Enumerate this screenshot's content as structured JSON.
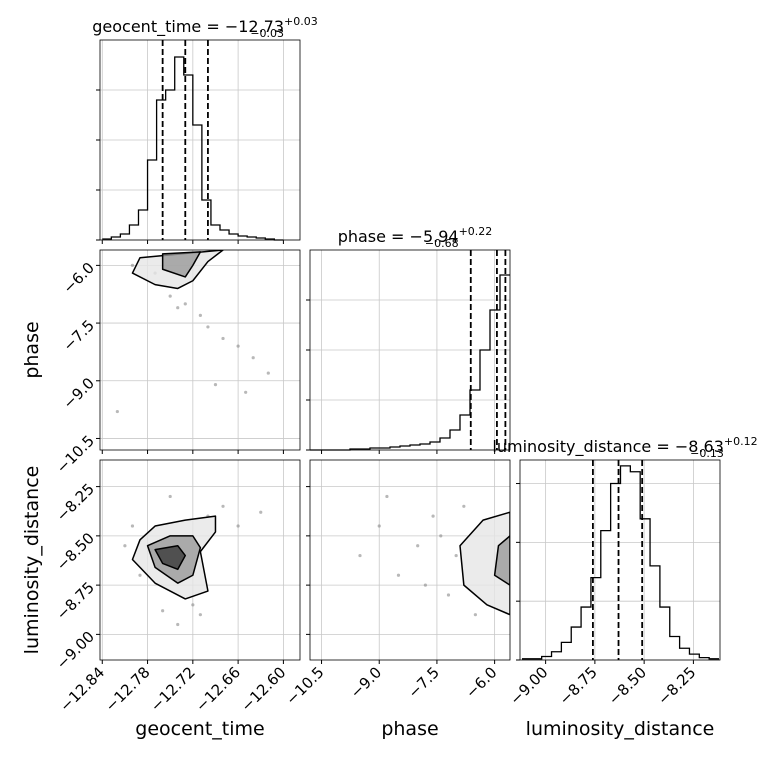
{
  "chart_data": {
    "type": "corner",
    "parameters": [
      {
        "label": "geocent_time",
        "title": "geocent_time = −12.73",
        "title_plus": "+0.03",
        "title_minus": "−0.03",
        "lim": [
          -12.843,
          -12.578
        ],
        "ticks": [
          {
            "value": -12.84,
            "label": "−12.84"
          },
          {
            "value": -12.78,
            "label": "−12.78"
          },
          {
            "value": -12.72,
            "label": "−12.72"
          },
          {
            "value": -12.66,
            "label": "−12.66"
          },
          {
            "value": -12.6,
            "label": "−12.60"
          }
        ],
        "quantiles": [
          -12.76,
          -12.73,
          -12.7
        ],
        "bins": [
          -12.84,
          -12.828,
          -12.816,
          -12.804,
          -12.792,
          -12.78,
          -12.768,
          -12.756,
          -12.744,
          -12.732,
          -12.72,
          -12.708,
          -12.696,
          -12.684,
          -12.672,
          -12.66,
          -12.648,
          -12.636,
          -12.624,
          -12.612,
          -12.6
        ],
        "counts": [
          1,
          3,
          6,
          15,
          30,
          80,
          140,
          150,
          183,
          165,
          115,
          40,
          15,
          10,
          6,
          4,
          3,
          2,
          1,
          0
        ],
        "count_lim": [
          0,
          200
        ],
        "count_ticks": [
          0,
          50,
          100,
          150
        ]
      },
      {
        "label": "phase",
        "title": "phase = −5.94",
        "title_plus": "+0.22",
        "title_minus": "−0.68",
        "lim": [
          -10.8,
          -5.6
        ],
        "ticks": [
          {
            "value": -10.5,
            "label": "−10.5"
          },
          {
            "value": -9.0,
            "label": "−9.0"
          },
          {
            "value": -7.5,
            "label": "−7.5"
          },
          {
            "value": -6.0,
            "label": "−6.0"
          }
        ],
        "quantiles": [
          -6.62,
          -5.94,
          -5.72
        ],
        "bins": [
          -10.8,
          -10.54,
          -10.28,
          -10.02,
          -9.76,
          -9.5,
          -9.24,
          -8.98,
          -8.72,
          -8.46,
          -8.2,
          -7.94,
          -7.68,
          -7.42,
          -7.16,
          -6.9,
          -6.64,
          -6.38,
          -6.12,
          -5.86,
          -5.6
        ],
        "counts": [
          0,
          0,
          0,
          0,
          1,
          1,
          2,
          2,
          3,
          4,
          5,
          6,
          8,
          12,
          20,
          35,
          60,
          100,
          140,
          175
        ],
        "count_lim": [
          0,
          200
        ],
        "count_ticks": [
          0,
          50,
          100,
          150
        ]
      },
      {
        "label": "luminosity_distance",
        "title": "luminosity_distance = −8.63",
        "title_plus": "+0.12",
        "title_minus": "−0.13",
        "lim": [
          -9.13,
          -8.115
        ],
        "ticks": [
          {
            "value": -9.0,
            "label": "−9.00"
          },
          {
            "value": -8.75,
            "label": "−8.75"
          },
          {
            "value": -8.5,
            "label": "−8.50"
          },
          {
            "value": -8.25,
            "label": "−8.25"
          }
        ],
        "quantiles": [
          -8.76,
          -8.63,
          -8.51
        ],
        "bins": [
          -9.12,
          -9.07,
          -9.02,
          -8.97,
          -8.92,
          -8.87,
          -8.82,
          -8.77,
          -8.72,
          -8.67,
          -8.62,
          -8.57,
          -8.52,
          -8.47,
          -8.42,
          -8.37,
          -8.32,
          -8.27,
          -8.22,
          -8.17,
          -8.12
        ],
        "counts": [
          1,
          1,
          3,
          7,
          15,
          28,
          45,
          70,
          110,
          150,
          165,
          160,
          120,
          80,
          45,
          20,
          10,
          5,
          2,
          1
        ],
        "count_lim": [
          0,
          170
        ],
        "count_ticks": [
          0,
          50,
          100,
          150
        ]
      }
    ],
    "panels": [
      {
        "x": 0,
        "y": 1,
        "points": {
          "x": [
            -12.8,
            -12.77,
            -12.75,
            -12.74,
            -12.71,
            -12.7,
            -12.68,
            -12.66,
            -12.64,
            -12.62,
            -12.82,
            -12.69,
            -12.73,
            -12.65
          ],
          "y": [
            -6.0,
            -6.2,
            -6.8,
            -7.1,
            -7.3,
            -7.6,
            -7.9,
            -8.1,
            -8.4,
            -8.8,
            -9.8,
            -9.1,
            -7.0,
            -9.3
          ]
        },
        "contours": [
          {
            "x": [
              -12.79,
              -12.8,
              -12.77,
              -12.74,
              -12.72,
              -12.7,
              -12.68
            ],
            "y": [
              -5.8,
              -6.2,
              -6.5,
              -6.6,
              -6.4,
              -5.9,
              -5.6
            ]
          },
          {
            "x": [
              -12.76,
              -12.76,
              -12.73,
              -12.72,
              -12.71
            ],
            "y": [
              -5.7,
              -6.1,
              -6.3,
              -6.0,
              -5.65
            ]
          }
        ]
      },
      {
        "x": 0,
        "y": 2,
        "points": {
          "x": [
            -12.81,
            -12.79,
            -12.76,
            -12.74,
            -12.72,
            -12.7,
            -12.68,
            -12.66,
            -12.63,
            -12.8,
            -12.75,
            -12.71
          ],
          "y": [
            -8.55,
            -8.7,
            -8.88,
            -8.95,
            -8.85,
            -8.4,
            -8.35,
            -8.45,
            -8.38,
            -8.45,
            -8.3,
            -8.9
          ]
        },
        "contours": [
          {
            "x": [
              -12.79,
              -12.77,
              -12.73,
              -12.69,
              -12.69,
              -12.71,
              -12.7,
              -12.73,
              -12.77,
              -12.8
            ],
            "y": [
              -8.52,
              -8.45,
              -8.42,
              -8.4,
              -8.48,
              -8.58,
              -8.78,
              -8.82,
              -8.74,
              -8.62
            ]
          },
          {
            "x": [
              -12.78,
              -12.75,
              -12.72,
              -12.71,
              -12.72,
              -12.74,
              -12.77
            ],
            "y": [
              -8.55,
              -8.5,
              -8.5,
              -8.56,
              -8.7,
              -8.74,
              -8.66
            ]
          },
          {
            "x": [
              -12.77,
              -12.74,
              -12.73,
              -12.74,
              -12.76
            ],
            "y": [
              -8.57,
              -8.55,
              -8.6,
              -8.67,
              -8.64
            ]
          }
        ]
      },
      {
        "x": 1,
        "y": 2,
        "points": {
          "x": [
            -9.5,
            -9.0,
            -8.5,
            -8.0,
            -7.6,
            -7.2,
            -7.0,
            -6.8,
            -6.5,
            -8.8,
            -7.8,
            -7.4
          ],
          "y": [
            -8.6,
            -8.45,
            -8.7,
            -8.55,
            -8.4,
            -8.8,
            -8.6,
            -8.35,
            -8.9,
            -8.3,
            -8.75,
            -8.5
          ]
        },
        "contours": [
          {
            "x": [
              -5.6,
              -6.3,
              -6.9,
              -6.8,
              -6.2,
              -5.6
            ],
            "y": [
              -8.38,
              -8.42,
              -8.55,
              -8.75,
              -8.85,
              -8.9
            ]
          },
          {
            "x": [
              -5.6,
              -5.9,
              -6.0,
              -5.6
            ],
            "y": [
              -8.5,
              -8.55,
              -8.7,
              -8.75
            ]
          }
        ]
      }
    ]
  }
}
